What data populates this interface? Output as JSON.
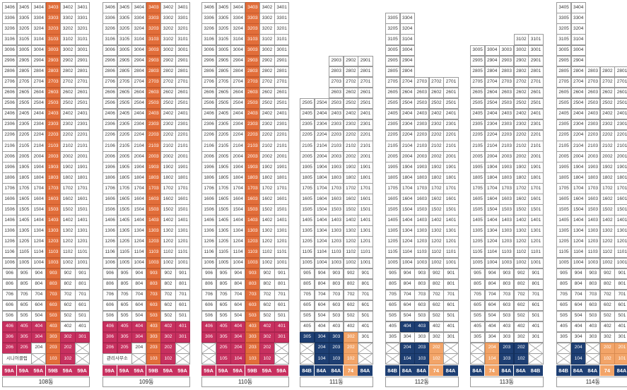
{
  "diagram_title": "",
  "colors": {
    "orange": "#e26e3a",
    "light_orange": "#f2a468",
    "magenta": "#c7305f",
    "navy": "#1e3f73",
    "grid": "#9a9a9a"
  },
  "buildings": [
    {
      "name": "108동",
      "top_floor": 34,
      "lines": [
        6,
        5,
        4,
        3,
        2,
        1
      ],
      "type_labels": [
        "59A",
        "59A",
        "59A",
        "59B",
        "59A",
        "59A"
      ],
      "type_colors": [
        "m",
        "m",
        "m",
        "m",
        "m",
        "m"
      ],
      "special": {
        "2": "시니어클럽",
        "3": ""
      },
      "highlight_col": 3,
      "low_floors": {
        "4": [
          "m",
          "m",
          "m",
          "o",
          "",
          ""
        ],
        "3": [
          "m",
          "m",
          "m",
          "o",
          "m",
          "m"
        ],
        "2": [
          "m",
          "m",
          "",
          "o",
          "m",
          "x"
        ],
        "1": [
          "",
          "",
          "x",
          "o",
          "m",
          "x"
        ]
      }
    },
    {
      "name": "109동",
      "top_floor": 34,
      "lines": [
        6,
        5,
        4,
        3,
        2,
        1
      ],
      "type_labels": [
        "59A",
        "59A",
        "59A",
        "59B",
        "59A",
        "59A"
      ],
      "type_colors": [
        "m",
        "m",
        "m",
        "m",
        "m",
        "m"
      ],
      "special": {
        "2": "관리사무소",
        "3": ""
      },
      "highlight_col": 3,
      "low_floors": {
        "4": [
          "m",
          "m",
          "m",
          "o",
          "m",
          "m"
        ],
        "3": [
          "m",
          "m",
          "m",
          "o",
          "m",
          "m"
        ],
        "2": [
          "m",
          "m",
          "",
          "o",
          "m",
          "x"
        ],
        "1": [
          "",
          "",
          "x",
          "o",
          "m",
          "x"
        ]
      }
    },
    {
      "name": "110동",
      "top_floor": 34,
      "lines": [
        6,
        5,
        4,
        3,
        2,
        1
      ],
      "type_labels": [
        "59A",
        "59A",
        "59A",
        "59B",
        "59A",
        "59A"
      ],
      "type_colors": [
        "m",
        "m",
        "m",
        "m",
        "m",
        "m"
      ],
      "special": {},
      "highlight_col": 3,
      "low_floors": {
        "4": [
          "m",
          "m",
          "m",
          "o",
          "m",
          "m"
        ],
        "3": [
          "m",
          "m",
          "m",
          "o",
          "m",
          "m"
        ],
        "2": [
          "x",
          "m",
          "m",
          "o",
          "m",
          "x"
        ],
        "1": [
          "x",
          "m",
          "m",
          "o",
          "m",
          "x"
        ]
      }
    },
    {
      "name": "111동",
      "top_floor": 29,
      "lines": [
        5,
        4,
        3,
        2,
        1
      ],
      "type_labels": [
        "84B",
        "84A",
        "84A",
        "74",
        "84A"
      ],
      "type_colors": [
        "n",
        "n",
        "n",
        "y",
        "n"
      ],
      "short_top": {
        "from_floor": 26,
        "lines": [
          3,
          2,
          1
        ]
      },
      "special": {},
      "highlight_col": -1,
      "low_floors": {
        "4": [
          "",
          "",
          "",
          "",
          ""
        ],
        "3": [
          "n",
          "n",
          "n",
          "y",
          ""
        ],
        "2": [
          "x",
          "n",
          "n",
          "y",
          "x"
        ],
        "1": [
          "x",
          "n",
          "n",
          "y",
          "x"
        ]
      }
    },
    {
      "name": "112동",
      "top_floor": 33,
      "lines": [
        5,
        4,
        3,
        2,
        1
      ],
      "type_labels": [
        "84B",
        "84A",
        "84A",
        "74",
        "84A"
      ],
      "type_colors": [
        "n",
        "n",
        "n",
        "y",
        "n"
      ],
      "short_top": {
        "from_floor": 28,
        "lines": [
          5,
          4
        ]
      },
      "special": {},
      "highlight_col": -1,
      "low_floors": {
        "4": [
          "",
          "n",
          "n",
          "",
          ""
        ],
        "3": [
          "",
          "",
          "",
          "",
          ""
        ],
        "2": [
          "x",
          "n",
          "n",
          "y",
          "x"
        ],
        "1": [
          "x",
          "n",
          "n",
          "y",
          "x"
        ]
      }
    },
    {
      "name": "113동",
      "top_floor": 31,
      "lines": [
        5,
        4,
        3,
        2,
        1
      ],
      "type_labels": [
        "84A",
        "74",
        "84A",
        "84A",
        "84B"
      ],
      "type_colors": [
        "n",
        "y",
        "n",
        "n",
        "n"
      ],
      "short_top": {
        "from_floor": 31,
        "lines": [
          2,
          1
        ]
      },
      "special": {},
      "highlight_col": -1,
      "low_floors": {
        "4": [
          "",
          "",
          "",
          "",
          ""
        ],
        "3": [
          "",
          "",
          "",
          "",
          ""
        ],
        "2": [
          "x",
          "y",
          "n",
          "n",
          "x"
        ],
        "1": [
          "x",
          "y",
          "n",
          "n",
          "x"
        ]
      }
    },
    {
      "name": "114동",
      "top_floor": 34,
      "lines": [
        5,
        4,
        3,
        2,
        1
      ],
      "type_labels": [
        "84B",
        "84A",
        "84A",
        "74",
        "84A"
      ],
      "type_colors": [
        "n",
        "n",
        "n",
        "y",
        "n"
      ],
      "short_top": {
        "from_floor": 29,
        "lines": [
          5,
          4
        ]
      },
      "special": {},
      "highlight_col": -1,
      "low_floors": {
        "4": [
          "",
          "",
          "",
          "",
          ""
        ],
        "3": [
          "",
          "",
          "",
          "",
          ""
        ],
        "2": [
          "x",
          "n",
          "x",
          "y",
          "y"
        ],
        "1": [
          "x",
          "n",
          "x",
          "y",
          "y"
        ]
      }
    }
  ]
}
